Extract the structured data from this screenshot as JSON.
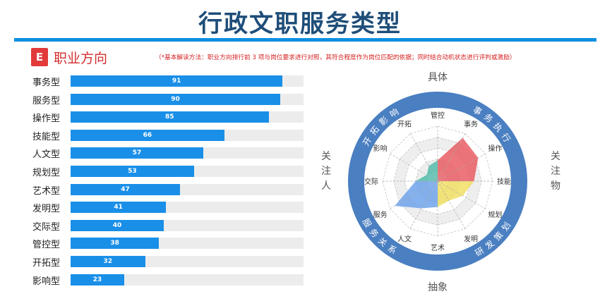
{
  "header": {
    "title": "行政文职服务类型"
  },
  "section": {
    "badge": "E",
    "title": "职业方向",
    "note": "（*基本解读方法：职业方向排行前 3 项与岗位要求进行对照，其符合程度作为岗位匹配的依据；同时结合动机状态进行评判或激励）"
  },
  "colors": {
    "bar": "#1a8fe8",
    "ring": "#4a7fc1"
  },
  "chart_data": [
    {
      "type": "bar",
      "orientation": "horizontal",
      "categories": [
        "事务型",
        "服务型",
        "操作型",
        "技能型",
        "人文型",
        "规划型",
        "艺术型",
        "发明型",
        "交际型",
        "管控型",
        "开拓型",
        "影响型"
      ],
      "values": [
        91,
        90,
        85,
        66,
        57,
        53,
        47,
        41,
        40,
        38,
        32,
        23
      ],
      "xlim": [
        0,
        100
      ]
    },
    {
      "type": "radar",
      "axes": [
        "管控",
        "事务",
        "操作",
        "技能",
        "规划",
        "发明",
        "艺术",
        "人文",
        "服务",
        "交际",
        "影响",
        "开拓"
      ],
      "series": [
        {
          "values": [
            38,
            91,
            85,
            66,
            53,
            41,
            47,
            57,
            90,
            40,
            23,
            32
          ]
        }
      ],
      "rmax": 100,
      "sector_colors": [
        "#e8585e",
        "#f0de5e",
        "#6aa1ea",
        "#4dbba8"
      ],
      "orientation_labels": {
        "top": "具体",
        "bottom": "抽象",
        "left": "关注人",
        "right": "关注物"
      },
      "ring_labels": {
        "top_left": "开拓影响",
        "top_right": "事务执行",
        "bottom_left": "服务关系",
        "bottom_right": "研发策划"
      }
    }
  ]
}
